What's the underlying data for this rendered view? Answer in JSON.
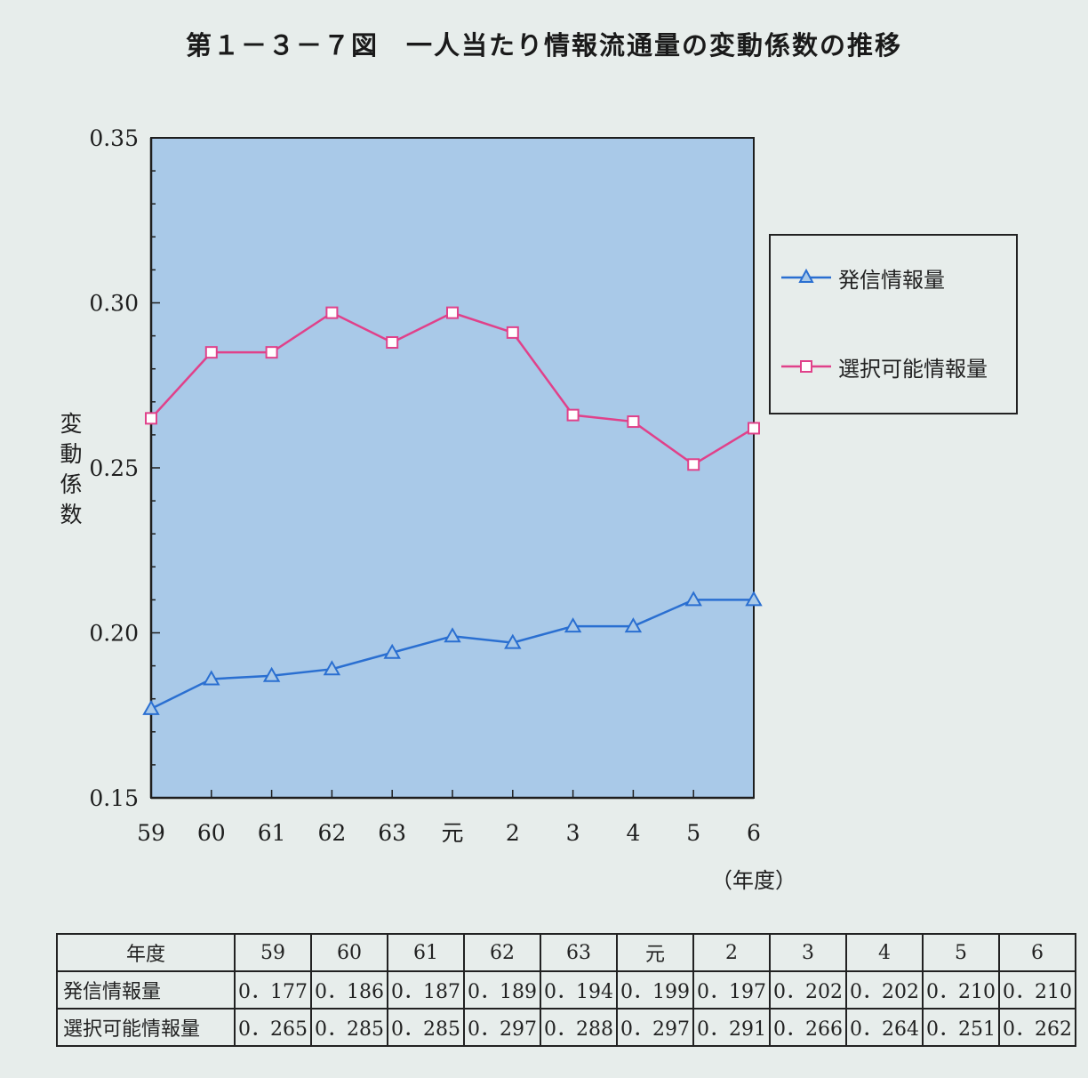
{
  "title": "第１－３－７図　一人当たり情報流通量の変動係数の推移",
  "chart_data": {
    "type": "line",
    "categories": [
      "59",
      "60",
      "61",
      "62",
      "63",
      "元",
      "2",
      "3",
      "4",
      "5",
      "6"
    ],
    "xlabel": "（年度）",
    "ylabel": "変動係数",
    "ylim": [
      0.15,
      0.35
    ],
    "yticks": [
      "0.15",
      "0.20",
      "0.25",
      "0.30",
      "0.35"
    ],
    "grid": false,
    "legend_position": "right",
    "plot_background": "#a9c9e8",
    "series": [
      {
        "name": "発信情報量",
        "marker": "triangle",
        "color": "#2a6fd1",
        "values": [
          0.177,
          0.186,
          0.187,
          0.189,
          0.194,
          0.199,
          0.197,
          0.202,
          0.202,
          0.21,
          0.21
        ]
      },
      {
        "name": "選択可能情報量",
        "marker": "square",
        "color": "#e0418a",
        "values": [
          0.265,
          0.285,
          0.285,
          0.297,
          0.288,
          0.297,
          0.291,
          0.266,
          0.264,
          0.251,
          0.262
        ]
      }
    ]
  },
  "table": {
    "header_label": "年度",
    "columns": [
      "59",
      "60",
      "61",
      "62",
      "63",
      "元",
      "2",
      "3",
      "4",
      "5",
      "6"
    ],
    "rows": [
      {
        "label": "発信情報量",
        "values": [
          "0．177",
          "0．186",
          "0．187",
          "0．189",
          "0．194",
          "0．199",
          "0．197",
          "0．202",
          "0．202",
          "0．210",
          "0．210"
        ]
      },
      {
        "label": "選択可能情報量",
        "values": [
          "0．265",
          "0．285",
          "0．285",
          "0．297",
          "0．288",
          "0．297",
          "0．291",
          "0．266",
          "0．264",
          "0．251",
          "0．262"
        ]
      }
    ]
  }
}
